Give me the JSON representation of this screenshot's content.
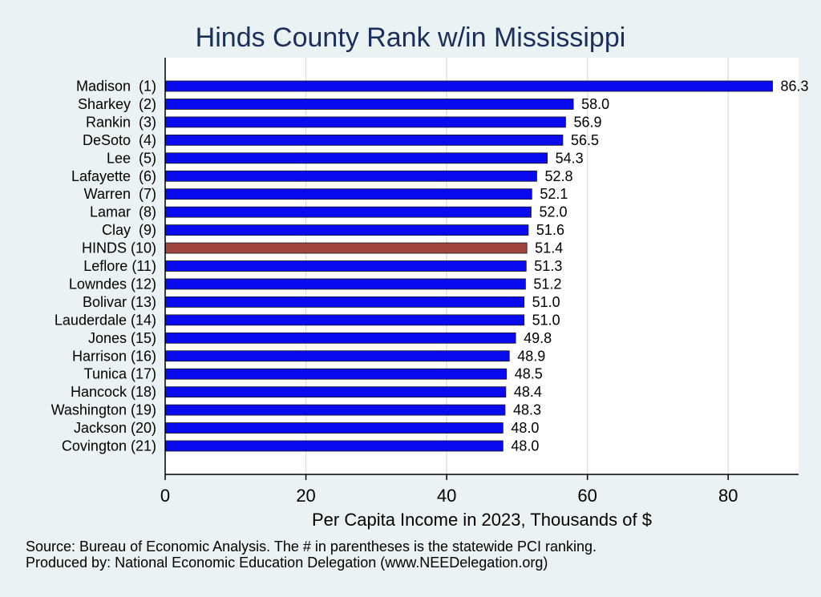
{
  "chart_data": {
    "type": "bar",
    "orientation": "horizontal",
    "title": "Hinds County Rank w/in Mississippi",
    "xlabel": "Per Capita Income in 2023, Thousands of $",
    "ylabel": "",
    "xlim": [
      0,
      90
    ],
    "xticks": [
      0,
      20,
      40,
      60,
      80
    ],
    "grid": true,
    "categories": [
      "Madison  (1)",
      "Sharkey  (2)",
      "Rankin  (3)",
      "DeSoto  (4)",
      "Lee  (5)",
      "Lafayette  (6)",
      "Warren  (7)",
      "Lamar  (8)",
      "Clay  (9)",
      "HINDS (10)",
      "Leflore (11)",
      "Lowndes (12)",
      "Bolivar (13)",
      "Lauderdale (14)",
      "Jones (15)",
      "Harrison (16)",
      "Tunica (17)",
      "Hancock (18)",
      "Washington (19)",
      "Jackson (20)",
      "Covington (21)"
    ],
    "values": [
      86.3,
      58.0,
      56.9,
      56.5,
      54.3,
      52.8,
      52.1,
      52.0,
      51.6,
      51.4,
      51.3,
      51.2,
      51.0,
      51.0,
      49.8,
      48.9,
      48.5,
      48.4,
      48.3,
      48.0,
      48.0
    ],
    "value_labels": [
      "86.3",
      "58.0",
      "56.9",
      "56.5",
      "54.3",
      "52.8",
      "52.1",
      "52.0",
      "51.6",
      "51.4",
      "51.3",
      "51.2",
      "51.0",
      "51.0",
      "49.8",
      "48.9",
      "48.5",
      "48.4",
      "48.3",
      "48.0",
      "48.0"
    ],
    "highlight_index": 9,
    "colors": {
      "bar": "#0a0aee",
      "highlight": "#a0443e",
      "grid": "#d6e4e6",
      "axis": "#000000"
    }
  },
  "footnotes": {
    "source": "Source: Bureau of Economic Analysis. The # in parentheses is the statewide PCI ranking.",
    "produced": "Produced by: National Economic Education Delegation (www.NEEDelegation.org)"
  }
}
